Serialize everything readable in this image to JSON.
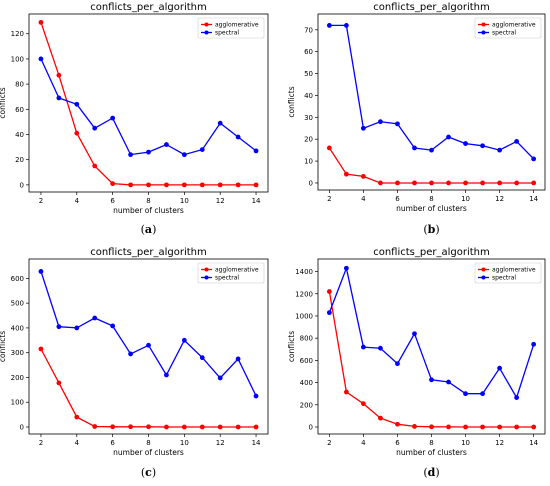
{
  "chart_data": [
    {
      "type": "line",
      "panel": "a",
      "title": "conflicts_per_algorithm",
      "xlabel": "number of clusters",
      "ylabel": "conflicts",
      "caption": "(a)",
      "xlim": [
        2,
        14
      ],
      "ylim": [
        0,
        130
      ],
      "xticks": [
        2,
        4,
        6,
        8,
        10,
        12,
        14
      ],
      "yticks": [
        0,
        20,
        40,
        60,
        80,
        100,
        120
      ],
      "legend_position": "top-right",
      "x": [
        2,
        3,
        4,
        5,
        6,
        7,
        8,
        9,
        10,
        11,
        12,
        13,
        14
      ],
      "series": [
        {
          "name": "agglomerative",
          "color": "#ff0000",
          "values": [
            129,
            87,
            41,
            15,
            1,
            0,
            0,
            0,
            0,
            0,
            0,
            0,
            0
          ]
        },
        {
          "name": "spectral",
          "color": "#0000ff",
          "values": [
            100,
            69,
            64,
            45,
            53,
            24,
            26,
            32,
            24,
            28,
            49,
            38,
            27
          ]
        }
      ]
    },
    {
      "type": "line",
      "panel": "b",
      "title": "conflicts_per_algorithm",
      "xlabel": "number of clusters",
      "ylabel": "conflicts",
      "caption": "(b)",
      "xlim": [
        2,
        14
      ],
      "ylim": [
        0,
        74
      ],
      "xticks": [
        2,
        4,
        6,
        8,
        10,
        12,
        14
      ],
      "yticks": [
        0,
        10,
        20,
        30,
        40,
        50,
        60,
        70
      ],
      "legend_position": "top-right",
      "x": [
        2,
        3,
        4,
        5,
        6,
        7,
        8,
        9,
        10,
        11,
        12,
        13,
        14
      ],
      "series": [
        {
          "name": "agglomerative",
          "color": "#ff0000",
          "values": [
            16,
            4,
            3,
            0,
            0,
            0,
            0,
            0,
            0,
            0,
            0,
            0,
            0
          ]
        },
        {
          "name": "spectral",
          "color": "#0000ff",
          "values": [
            72,
            72,
            25,
            28,
            27,
            16,
            15,
            21,
            18,
            17,
            15,
            19,
            11
          ]
        }
      ]
    },
    {
      "type": "line",
      "panel": "c",
      "title": "conflicts_per_algorithm",
      "xlabel": "number of clusters",
      "ylabel": "conflicts",
      "caption": "(c)",
      "xlim": [
        2,
        14
      ],
      "ylim": [
        0,
        650
      ],
      "xticks": [
        2,
        4,
        6,
        8,
        10,
        12,
        14
      ],
      "yticks": [
        0,
        100,
        200,
        300,
        400,
        500,
        600
      ],
      "legend_position": "top-right",
      "x": [
        2,
        3,
        4,
        5,
        6,
        7,
        8,
        9,
        10,
        11,
        12,
        13,
        14
      ],
      "series": [
        {
          "name": "agglomerative",
          "color": "#ff0000",
          "values": [
            315,
            178,
            40,
            2,
            1,
            1,
            1,
            0,
            0,
            0,
            0,
            0,
            0
          ]
        },
        {
          "name": "spectral",
          "color": "#0000ff",
          "values": [
            628,
            405,
            400,
            440,
            408,
            295,
            330,
            210,
            350,
            280,
            198,
            275,
            125
          ]
        }
      ]
    },
    {
      "type": "line",
      "panel": "d",
      "title": "conflicts_per_algorithm",
      "xlabel": "number of clusters",
      "ylabel": "conflicts",
      "caption": "(d)",
      "xlim": [
        2,
        14
      ],
      "ylim": [
        0,
        1450
      ],
      "xticks": [
        2,
        4,
        6,
        8,
        10,
        12,
        14
      ],
      "yticks": [
        0,
        200,
        400,
        600,
        800,
        1000,
        1200,
        1400
      ],
      "legend_position": "top-right",
      "x": [
        2,
        3,
        4,
        5,
        6,
        7,
        8,
        9,
        10,
        11,
        12,
        13,
        14
      ],
      "series": [
        {
          "name": "agglomerative",
          "color": "#ff0000",
          "values": [
            1220,
            315,
            210,
            80,
            25,
            5,
            2,
            1,
            0,
            0,
            0,
            0,
            0
          ]
        },
        {
          "name": "spectral",
          "color": "#0000ff",
          "values": [
            1030,
            1430,
            720,
            710,
            570,
            840,
            425,
            405,
            300,
            300,
            530,
            265,
            745
          ]
        }
      ]
    }
  ]
}
